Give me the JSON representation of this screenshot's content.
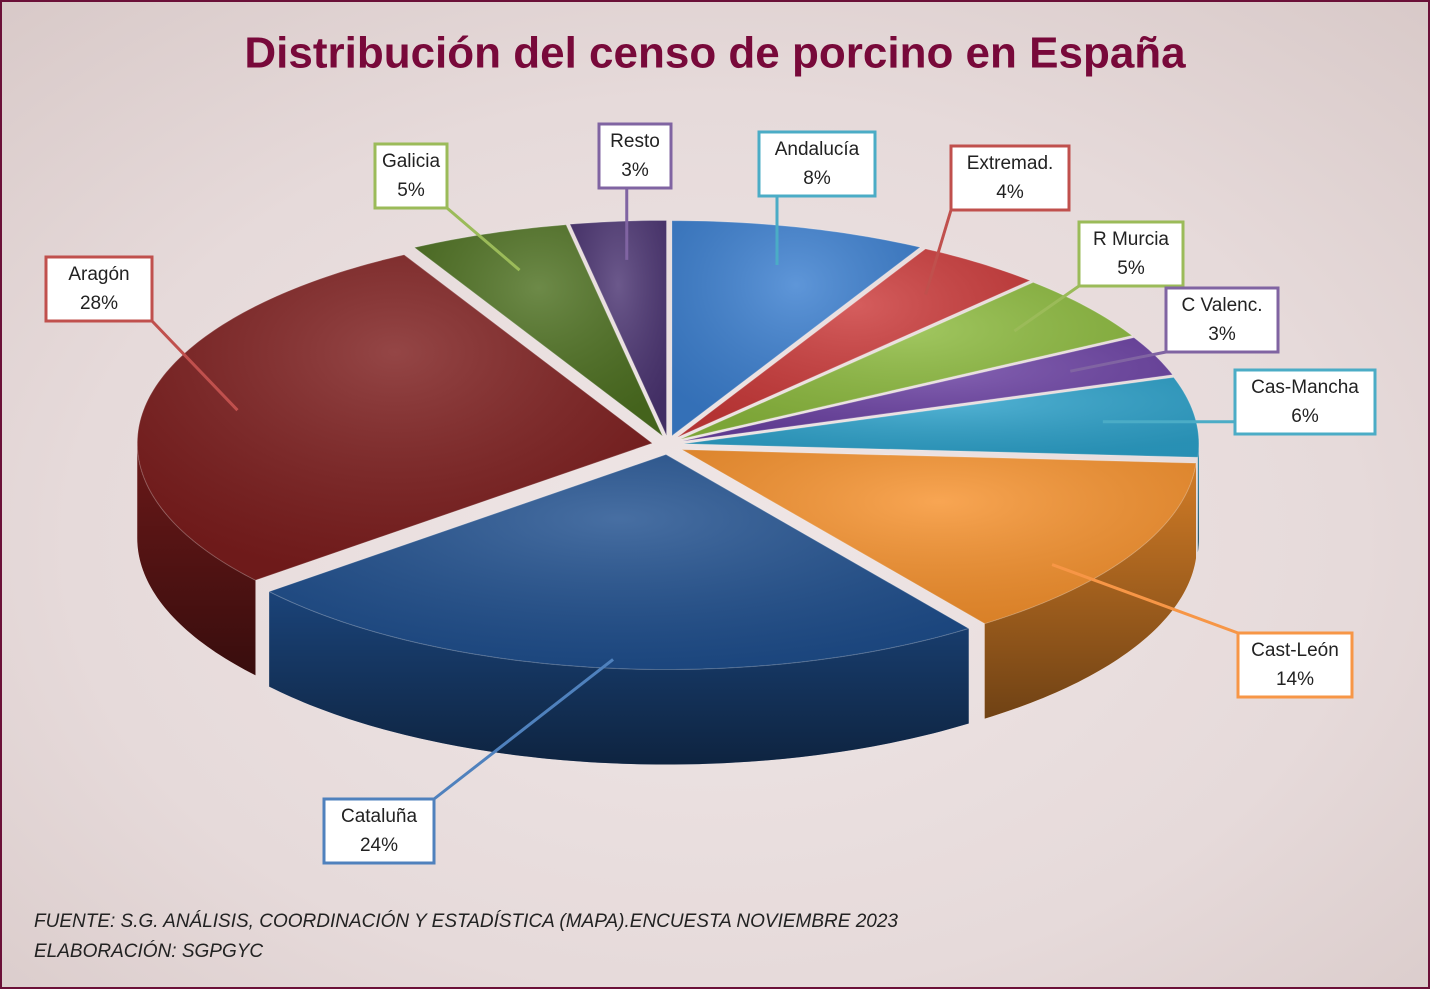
{
  "chart_data": {
    "type": "pie3d",
    "title": "Distribución del censo de porcino en España",
    "categories": [
      "Andalucía",
      "Extremad.",
      "R Murcia",
      "C Valenc.",
      "Cas-Mancha",
      "Cast-León",
      "Cataluña",
      "Aragón",
      "Galicia",
      "Resto"
    ],
    "values": [
      8,
      4,
      5,
      3,
      6,
      14,
      24,
      28,
      5,
      3
    ],
    "value_labels": [
      "8%",
      "4%",
      "5%",
      "3%",
      "6%",
      "14%",
      "24%",
      "28%",
      "5%",
      "3%"
    ],
    "colors": [
      "#3b7fd0",
      "#cc3a3a",
      "#8dbb3e",
      "#6c42a4",
      "#2ea3cc",
      "#f7922d",
      "#1f4f8e",
      "#7d1d1d",
      "#4d7020",
      "#4b3472"
    ],
    "label_border_colors": [
      "#4bacc6",
      "#c0504d",
      "#9bbb59",
      "#8064a2",
      "#4bacc6",
      "#f79646",
      "#4f81bd",
      "#c0504d",
      "#9bbb59",
      "#8064a2"
    ],
    "source": "FUENTE: S.G. ANÁLISIS, COORDINACIÓN Y ESTADÍSTICA (MAPA).ENCUESTA NOVIEMBRE 2023",
    "credit": "ELABORACIÓN: SGPGYC"
  }
}
